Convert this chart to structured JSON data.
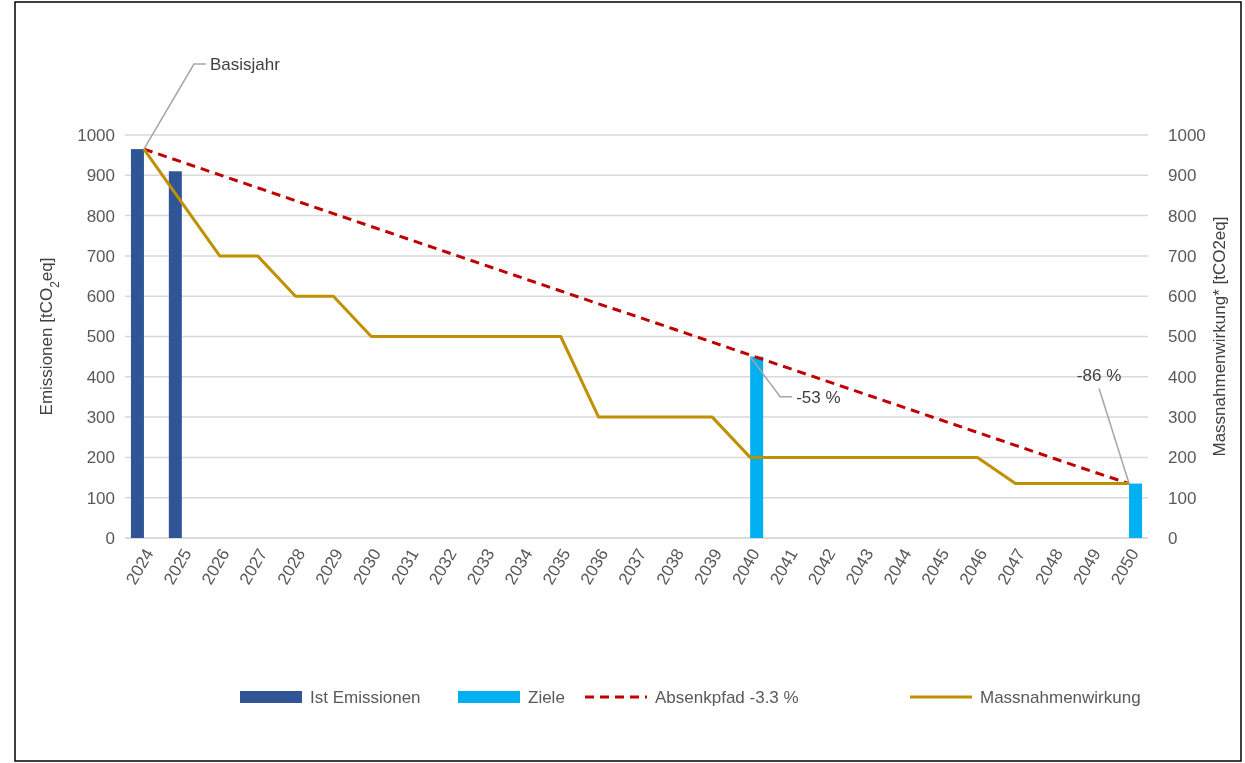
{
  "chart_data": {
    "type": "bar",
    "categories": [
      "2024",
      "2025",
      "2026",
      "2027",
      "2028",
      "2029",
      "2030",
      "2031",
      "2032",
      "2033",
      "2034",
      "2035",
      "2036",
      "2037",
      "2038",
      "2039",
      "2040",
      "2041",
      "2042",
      "2043",
      "2044",
      "2045",
      "2046",
      "2047",
      "2048",
      "2049",
      "2050"
    ],
    "series": [
      {
        "name": "Ist Emissionen",
        "color": "#2f5597",
        "values": [
          965,
          910,
          null,
          null,
          null,
          null,
          null,
          null,
          null,
          null,
          null,
          null,
          null,
          null,
          null,
          null,
          null,
          null,
          null,
          null,
          null,
          null,
          null,
          null,
          null,
          null,
          null
        ]
      },
      {
        "name": "Ziele",
        "color": "#00b0f0",
        "values": [
          null,
          null,
          null,
          null,
          null,
          null,
          null,
          null,
          null,
          null,
          null,
          null,
          null,
          null,
          null,
          null,
          450,
          null,
          null,
          null,
          null,
          null,
          null,
          null,
          null,
          null,
          135
        ]
      },
      {
        "name": "Absenkpfad -3.3 %",
        "type": "line",
        "color": "#c00000",
        "line_style": "dashed",
        "values": [
          965,
          933,
          901,
          869,
          837,
          805,
          773,
          741,
          709,
          677,
          645,
          613,
          581,
          550,
          518,
          486,
          454,
          422,
          390,
          358,
          326,
          294,
          262,
          230,
          198,
          166,
          135
        ]
      },
      {
        "name": "Massnahmenwirkung",
        "type": "line",
        "color": "#bf9000",
        "line_style": "solid",
        "values": [
          965,
          832,
          700,
          700,
          600,
          600,
          500,
          500,
          500,
          500,
          500,
          500,
          300,
          300,
          300,
          300,
          200,
          200,
          200,
          200,
          200,
          200,
          200,
          135,
          135,
          135,
          135
        ]
      }
    ],
    "ylabel": "Emissionen [tCO$_{2}$eq]",
    "y2label": "Massnahmenwirkung* [tCO2eq]",
    "ylim": [
      0,
      1000
    ],
    "yticks": [
      0,
      100,
      200,
      300,
      400,
      500,
      600,
      700,
      800,
      900,
      1000
    ],
    "y2lim": [
      0,
      1000
    ],
    "y2ticks": [
      0,
      100,
      200,
      300,
      400,
      500,
      600,
      700,
      800,
      900,
      1000
    ],
    "grid": "y",
    "legend": "bottom",
    "annotations": [
      {
        "text": "Basisjahr",
        "x": "2024",
        "y": 965
      },
      {
        "text": "-53 %",
        "x": "2040",
        "y": 450
      },
      {
        "text": "-86 %",
        "x": "2050",
        "y": 135
      }
    ]
  }
}
